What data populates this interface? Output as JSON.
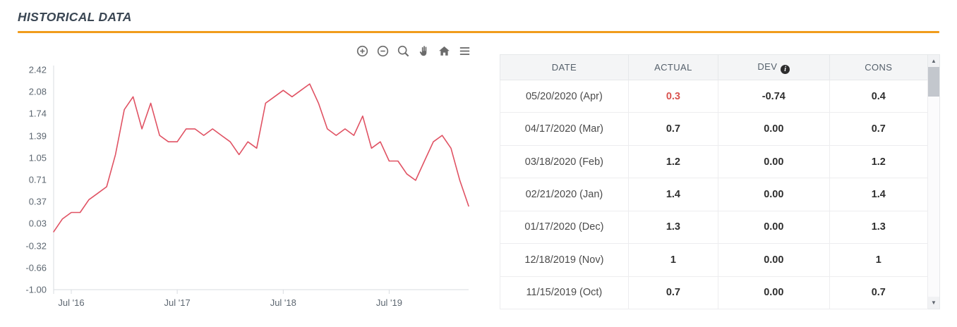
{
  "header": {
    "title": "HISTORICAL DATA",
    "accent_color": "#f09c1c"
  },
  "chart": {
    "modebar_icons": [
      "zoom-in-icon",
      "zoom-out-icon",
      "zoom-icon",
      "pan-icon",
      "home-icon",
      "menu-icon"
    ]
  },
  "chart_data": {
    "type": "line",
    "title": "",
    "xlabel": "",
    "ylabel": "",
    "x_tick_labels": [
      "Jul '16",
      "Jul '17",
      "Jul '18",
      "Jul '19"
    ],
    "x_tick_indices": [
      2,
      14,
      26,
      38
    ],
    "x_start": "May 2016",
    "frequency": "monthly",
    "y_tick_labels": [
      "2.42",
      "2.08",
      "1.74",
      "1.39",
      "1.05",
      "0.71",
      "0.37",
      "0.03",
      "-0.32",
      "-0.66",
      "-1.00"
    ],
    "ylim": [
      -1.0,
      2.42
    ],
    "grid": false,
    "legend": false,
    "series": [
      {
        "name": "Actual",
        "color": "#e05263",
        "values": [
          -0.1,
          0.1,
          0.2,
          0.2,
          0.4,
          0.5,
          0.6,
          1.1,
          1.8,
          2.0,
          1.5,
          1.9,
          1.4,
          1.3,
          1.3,
          1.5,
          1.5,
          1.4,
          1.5,
          1.4,
          1.3,
          1.1,
          1.3,
          1.2,
          1.9,
          2.0,
          2.1,
          2.0,
          2.1,
          2.2,
          1.9,
          1.5,
          1.4,
          1.5,
          1.4,
          1.7,
          1.2,
          1.3,
          1.0,
          1.0,
          0.8,
          0.7,
          1.0,
          1.3,
          1.4,
          1.2,
          0.7,
          0.3
        ]
      }
    ]
  },
  "table": {
    "columns": [
      "DATE",
      "ACTUAL",
      "DEV",
      "CONS"
    ],
    "dev_info_glyph": "i",
    "scroll_up_glyph": "▲",
    "scroll_down_glyph": "▼",
    "actual_red_color": "#d9534f",
    "rows": [
      {
        "date": "05/20/2020 (Apr)",
        "actual": "0.3",
        "dev": "-0.74",
        "cons": "0.4",
        "actual_red": true
      },
      {
        "date": "04/17/2020 (Mar)",
        "actual": "0.7",
        "dev": "0.00",
        "cons": "0.7",
        "actual_red": false
      },
      {
        "date": "03/18/2020 (Feb)",
        "actual": "1.2",
        "dev": "0.00",
        "cons": "1.2",
        "actual_red": false
      },
      {
        "date": "02/21/2020 (Jan)",
        "actual": "1.4",
        "dev": "0.00",
        "cons": "1.4",
        "actual_red": false
      },
      {
        "date": "01/17/2020 (Dec)",
        "actual": "1.3",
        "dev": "0.00",
        "cons": "1.3",
        "actual_red": false
      },
      {
        "date": "12/18/2019 (Nov)",
        "actual": "1",
        "dev": "0.00",
        "cons": "1",
        "actual_red": false
      },
      {
        "date": "11/15/2019 (Oct)",
        "actual": "0.7",
        "dev": "0.00",
        "cons": "0.7",
        "actual_red": false
      }
    ]
  }
}
